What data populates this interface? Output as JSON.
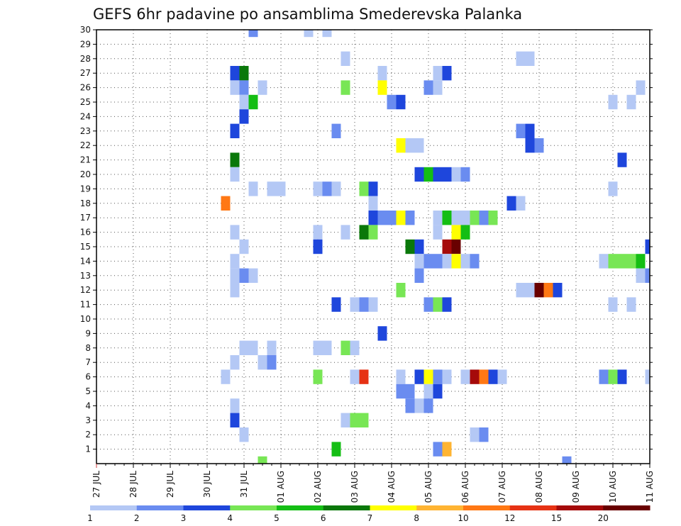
{
  "chart_data": {
    "type": "heatmap",
    "title": "GEFS 6hr padavine po ansamblima Smederevska Palanka",
    "x_tick_labels": [
      "27 JUL",
      "28 JUL",
      "29 JUL",
      "30 JUL",
      "31 JUL",
      "01 AUG",
      "02 AUG",
      "03 AUG",
      "04 AUG",
      "05 AUG",
      "06 AUG",
      "07 AUG",
      "08 AUG",
      "09 AUG",
      "10 AUG",
      "11 AUG"
    ],
    "x_range_days": [
      0,
      15
    ],
    "y_tick_labels": [
      "1",
      "2",
      "3",
      "4",
      "5",
      "6",
      "7",
      "8",
      "9",
      "10",
      "11",
      "12",
      "13",
      "14",
      "15",
      "16",
      "17",
      "18",
      "19",
      "20",
      "21",
      "22",
      "23",
      "24",
      "25",
      "26",
      "27",
      "28",
      "29",
      "30"
    ],
    "y_range": [
      0,
      30
    ],
    "grid": true,
    "colorbar": {
      "labels": [
        "1",
        "2",
        "3",
        "4",
        "5",
        "6",
        "7",
        "8",
        "10",
        "12",
        "15",
        "20"
      ],
      "colors": [
        "#b4c8f5",
        "#6a8cf0",
        "#1e46dc",
        "#78e655",
        "#14be14",
        "#0a780a",
        "#ffff00",
        "#ffb432",
        "#ff7814",
        "#e63214",
        "#a50a0a",
        "#690000"
      ]
    },
    "cells": [
      [
        4.25,
        30,
        2
      ],
      [
        5.75,
        30,
        1
      ],
      [
        6.25,
        30,
        1
      ],
      [
        6.75,
        28,
        1
      ],
      [
        11.5,
        28,
        1
      ],
      [
        11.75,
        28,
        1
      ],
      [
        3.75,
        27,
        3
      ],
      [
        4.0,
        27,
        6
      ],
      [
        7.75,
        27,
        1
      ],
      [
        9.25,
        27,
        1
      ],
      [
        9.5,
        27,
        3
      ],
      [
        3.75,
        26,
        1
      ],
      [
        4.0,
        26,
        2
      ],
      [
        4.5,
        26,
        1
      ],
      [
        6.75,
        26,
        4
      ],
      [
        7.75,
        26,
        7
      ],
      [
        9.0,
        26,
        2
      ],
      [
        9.25,
        26,
        1
      ],
      [
        14.75,
        26,
        1
      ],
      [
        4.0,
        25,
        1
      ],
      [
        4.25,
        25,
        5
      ],
      [
        8.0,
        25,
        2
      ],
      [
        8.25,
        25,
        3
      ],
      [
        14.0,
        25,
        1
      ],
      [
        14.5,
        25,
        1
      ],
      [
        4.0,
        24,
        3
      ],
      [
        3.75,
        23,
        3
      ],
      [
        6.5,
        23,
        2
      ],
      [
        11.5,
        23,
        2
      ],
      [
        11.75,
        23,
        3
      ],
      [
        8.25,
        22,
        7
      ],
      [
        8.5,
        22,
        1
      ],
      [
        8.75,
        22,
        1
      ],
      [
        11.75,
        22,
        3
      ],
      [
        12.0,
        22,
        2
      ],
      [
        3.75,
        21,
        6
      ],
      [
        14.25,
        21,
        3
      ],
      [
        3.75,
        20,
        1
      ],
      [
        8.75,
        20,
        3
      ],
      [
        9.0,
        20,
        5
      ],
      [
        9.25,
        20,
        3
      ],
      [
        9.5,
        20,
        3
      ],
      [
        9.75,
        20,
        1
      ],
      [
        10.0,
        20,
        2
      ],
      [
        4.25,
        19,
        1
      ],
      [
        4.75,
        19,
        1
      ],
      [
        5.0,
        19,
        1
      ],
      [
        6.0,
        19,
        1
      ],
      [
        6.25,
        19,
        2
      ],
      [
        6.5,
        19,
        1
      ],
      [
        7.25,
        19,
        4
      ],
      [
        7.5,
        19,
        3
      ],
      [
        14.0,
        19,
        1
      ],
      [
        3.5,
        18,
        9
      ],
      [
        7.5,
        18,
        1
      ],
      [
        11.25,
        18,
        3
      ],
      [
        11.5,
        18,
        1
      ],
      [
        7.5,
        17,
        3
      ],
      [
        7.75,
        17,
        2
      ],
      [
        8.0,
        17,
        2
      ],
      [
        8.25,
        17,
        7
      ],
      [
        8.5,
        17,
        2
      ],
      [
        9.25,
        17,
        1
      ],
      [
        9.5,
        17,
        5
      ],
      [
        9.75,
        17,
        1
      ],
      [
        10.0,
        17,
        1
      ],
      [
        10.25,
        17,
        4
      ],
      [
        10.5,
        17,
        2
      ],
      [
        10.75,
        17,
        4
      ],
      [
        3.75,
        16,
        1
      ],
      [
        6.0,
        16,
        1
      ],
      [
        6.75,
        16,
        1
      ],
      [
        7.25,
        16,
        6
      ],
      [
        7.5,
        16,
        4
      ],
      [
        9.25,
        16,
        1
      ],
      [
        9.75,
        16,
        7
      ],
      [
        10.0,
        16,
        5
      ],
      [
        4.0,
        15,
        1
      ],
      [
        6.0,
        15,
        3
      ],
      [
        8.5,
        15,
        6
      ],
      [
        8.75,
        15,
        3
      ],
      [
        9.5,
        15,
        11
      ],
      [
        9.75,
        15,
        12
      ],
      [
        15.0,
        15,
        3
      ],
      [
        3.75,
        14,
        1
      ],
      [
        8.75,
        14,
        1
      ],
      [
        9.0,
        14,
        2
      ],
      [
        9.25,
        14,
        2
      ],
      [
        9.5,
        14,
        1
      ],
      [
        9.75,
        14,
        7
      ],
      [
        10.0,
        14,
        1
      ],
      [
        10.25,
        14,
        2
      ],
      [
        13.75,
        14,
        1
      ],
      [
        14.0,
        14,
        4
      ],
      [
        14.25,
        14,
        4
      ],
      [
        14.5,
        14,
        4
      ],
      [
        14.75,
        14,
        5
      ],
      [
        3.75,
        13,
        1
      ],
      [
        4.0,
        13,
        2
      ],
      [
        4.25,
        13,
        1
      ],
      [
        8.75,
        13,
        2
      ],
      [
        14.75,
        13,
        1
      ],
      [
        15.0,
        13,
        2
      ],
      [
        3.75,
        12,
        1
      ],
      [
        8.25,
        12,
        4
      ],
      [
        11.5,
        12,
        1
      ],
      [
        11.75,
        12,
        1
      ],
      [
        12.0,
        12,
        12
      ],
      [
        12.25,
        12,
        9
      ],
      [
        12.5,
        12,
        3
      ],
      [
        6.5,
        11,
        3
      ],
      [
        7.0,
        11,
        1
      ],
      [
        7.25,
        11,
        2
      ],
      [
        7.5,
        11,
        1
      ],
      [
        9.0,
        11,
        2
      ],
      [
        9.25,
        11,
        4
      ],
      [
        9.5,
        11,
        3
      ],
      [
        14.0,
        11,
        1
      ],
      [
        14.5,
        11,
        1
      ],
      [
        7.75,
        9,
        3
      ],
      [
        4.0,
        8,
        1
      ],
      [
        4.25,
        8,
        1
      ],
      [
        4.75,
        8,
        1
      ],
      [
        6.0,
        8,
        1
      ],
      [
        6.25,
        8,
        1
      ],
      [
        6.75,
        8,
        4
      ],
      [
        7.0,
        8,
        1
      ],
      [
        3.75,
        7,
        1
      ],
      [
        4.5,
        7,
        1
      ],
      [
        4.75,
        7,
        2
      ],
      [
        3.5,
        6,
        1
      ],
      [
        6.0,
        6,
        4
      ],
      [
        7.0,
        6,
        1
      ],
      [
        7.25,
        6,
        10
      ],
      [
        8.25,
        6,
        1
      ],
      [
        8.75,
        6,
        3
      ],
      [
        9.0,
        6,
        7
      ],
      [
        9.25,
        6,
        2
      ],
      [
        9.5,
        6,
        1
      ],
      [
        10.0,
        6,
        1
      ],
      [
        10.25,
        6,
        11
      ],
      [
        10.5,
        6,
        9
      ],
      [
        10.75,
        6,
        3
      ],
      [
        11.0,
        6,
        1
      ],
      [
        13.75,
        6,
        2
      ],
      [
        14.0,
        6,
        4
      ],
      [
        14.25,
        6,
        3
      ],
      [
        15.0,
        6,
        1
      ],
      [
        8.25,
        5,
        2
      ],
      [
        8.5,
        5,
        2
      ],
      [
        9.0,
        5,
        1
      ],
      [
        9.25,
        5,
        3
      ],
      [
        3.75,
        4,
        1
      ],
      [
        8.5,
        4,
        2
      ],
      [
        8.75,
        4,
        1
      ],
      [
        9.0,
        4,
        2
      ],
      [
        3.75,
        3,
        3
      ],
      [
        6.75,
        3,
        1
      ],
      [
        7.0,
        3,
        4
      ],
      [
        7.25,
        3,
        4
      ],
      [
        4.0,
        2,
        1
      ],
      [
        10.25,
        2,
        1
      ],
      [
        10.5,
        2,
        2
      ],
      [
        6.5,
        1,
        5
      ],
      [
        9.25,
        1,
        2
      ],
      [
        9.5,
        1,
        8
      ],
      [
        4.5,
        0,
        4
      ],
      [
        12.75,
        0,
        2
      ]
    ]
  }
}
